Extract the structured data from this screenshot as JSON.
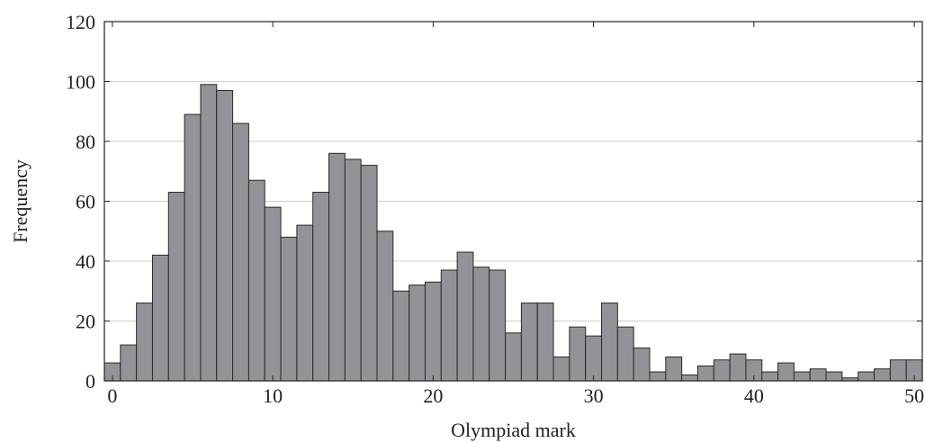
{
  "chart_data": {
    "type": "bar",
    "title": "",
    "xlabel": "Olympiad mark",
    "ylabel": "Frequency",
    "xlim": [
      -0.5,
      50.5
    ],
    "ylim": [
      0,
      120
    ],
    "xticks": [
      0,
      10,
      20,
      30,
      40,
      50
    ],
    "yticks": [
      0,
      20,
      40,
      60,
      80,
      100,
      120
    ],
    "grid": "horizontal",
    "bin_width": 1,
    "bins_center": [
      0,
      1,
      2,
      3,
      4,
      5,
      6,
      7,
      8,
      9,
      10,
      11,
      12,
      13,
      14,
      15,
      16,
      17,
      18,
      19,
      20,
      21,
      22,
      23,
      24,
      25,
      26,
      27,
      28,
      29,
      30,
      31,
      32,
      33,
      34,
      35,
      36,
      37,
      38,
      39,
      40,
      41,
      42,
      43,
      44,
      45,
      46,
      47,
      48,
      49,
      50
    ],
    "values": [
      6,
      12,
      26,
      42,
      63,
      89,
      99,
      97,
      86,
      67,
      58,
      48,
      52,
      63,
      76,
      74,
      72,
      50,
      30,
      32,
      33,
      37,
      43,
      38,
      37,
      16,
      26,
      26,
      8,
      18,
      15,
      26,
      18,
      11,
      3,
      8,
      2,
      5,
      7,
      9,
      7,
      3,
      6,
      3,
      4,
      3,
      1,
      3,
      4,
      7,
      7
    ],
    "colors": {
      "bar_fill": "#929397",
      "bar_edge": "#2a2a2a",
      "grid": "#cfcfcf",
      "axis": "#222222"
    }
  }
}
